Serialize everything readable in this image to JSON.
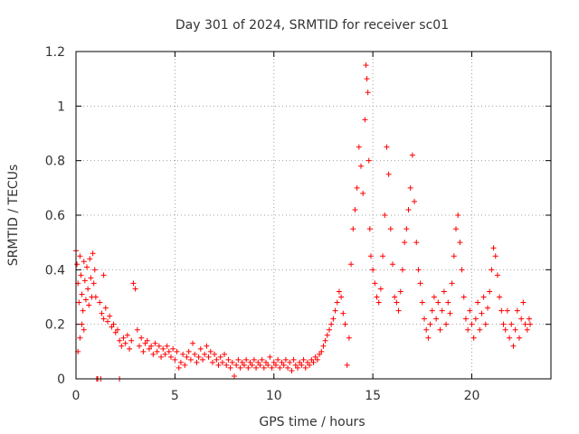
{
  "chart_data": {
    "type": "scatter",
    "title": "Day 301 of 2024, SRMTID for receiver sc01",
    "xlabel": "GPS time / hours",
    "ylabel": "SRMTID / TECUs",
    "xlim": [
      0,
      24
    ],
    "ylim": [
      0,
      1.2
    ],
    "xticks": [
      0,
      5,
      10,
      15,
      20
    ],
    "xtick_labels": [
      "0",
      "5",
      "10",
      "15",
      "20"
    ],
    "yticks": [
      0,
      0.2,
      0.4,
      0.6,
      0.8,
      1.0,
      1.2
    ],
    "ytick_labels": [
      "0",
      "0.2",
      "0.4",
      "0.6",
      "0.8",
      "1",
      "1.2"
    ],
    "grid": true,
    "marker": "+",
    "series": [
      {
        "name": "sc01",
        "color": "#ff0000",
        "points": [
          [
            0.0,
            0.47
          ],
          [
            0.05,
            0.42
          ],
          [
            0.1,
            0.35
          ],
          [
            0.15,
            0.28
          ],
          [
            0.2,
            0.45
          ],
          [
            0.25,
            0.38
          ],
          [
            0.3,
            0.31
          ],
          [
            0.35,
            0.25
          ],
          [
            0.4,
            0.43
          ],
          [
            0.45,
            0.36
          ],
          [
            0.5,
            0.29
          ],
          [
            0.55,
            0.41
          ],
          [
            0.6,
            0.33
          ],
          [
            0.65,
            0.27
          ],
          [
            0.7,
            0.44
          ],
          [
            0.75,
            0.37
          ],
          [
            0.8,
            0.3
          ],
          [
            0.85,
            0.46
          ],
          [
            0.9,
            0.35
          ],
          [
            0.95,
            0.4
          ],
          [
            0.1,
            0.1
          ],
          [
            0.2,
            0.15
          ],
          [
            0.3,
            0.2
          ],
          [
            0.4,
            0.18
          ],
          [
            1.05,
            0.0
          ],
          [
            1.1,
            0.0
          ],
          [
            1.25,
            0.0
          ],
          [
            2.2,
            0.0
          ],
          [
            1.4,
            0.38
          ],
          [
            1.0,
            0.3
          ],
          [
            1.2,
            0.28
          ],
          [
            1.3,
            0.24
          ],
          [
            1.4,
            0.22
          ],
          [
            1.5,
            0.26
          ],
          [
            1.6,
            0.21
          ],
          [
            1.7,
            0.23
          ],
          [
            1.8,
            0.19
          ],
          [
            1.9,
            0.2
          ],
          [
            2.0,
            0.17
          ],
          [
            2.1,
            0.18
          ],
          [
            2.2,
            0.14
          ],
          [
            2.3,
            0.12
          ],
          [
            2.4,
            0.15
          ],
          [
            2.5,
            0.13
          ],
          [
            2.6,
            0.16
          ],
          [
            2.7,
            0.11
          ],
          [
            2.8,
            0.14
          ],
          [
            2.9,
            0.35
          ],
          [
            3.0,
            0.33
          ],
          [
            3.1,
            0.18
          ],
          [
            3.2,
            0.12
          ],
          [
            3.3,
            0.15
          ],
          [
            3.4,
            0.1
          ],
          [
            3.5,
            0.13
          ],
          [
            3.6,
            0.14
          ],
          [
            3.7,
            0.11
          ],
          [
            3.8,
            0.12
          ],
          [
            3.9,
            0.09
          ],
          [
            4.0,
            0.13
          ],
          [
            4.1,
            0.1
          ],
          [
            4.2,
            0.12
          ],
          [
            4.3,
            0.08
          ],
          [
            4.4,
            0.11
          ],
          [
            4.5,
            0.09
          ],
          [
            4.6,
            0.12
          ],
          [
            4.7,
            0.1
          ],
          [
            4.8,
            0.08
          ],
          [
            4.9,
            0.11
          ],
          [
            5.0,
            0.07
          ],
          [
            5.1,
            0.1
          ],
          [
            5.2,
            0.04
          ],
          [
            5.3,
            0.06
          ],
          [
            5.4,
            0.09
          ],
          [
            5.5,
            0.05
          ],
          [
            5.6,
            0.08
          ],
          [
            5.7,
            0.1
          ],
          [
            5.8,
            0.07
          ],
          [
            5.9,
            0.13
          ],
          [
            6.0,
            0.09
          ],
          [
            6.1,
            0.06
          ],
          [
            6.2,
            0.08
          ],
          [
            6.3,
            0.11
          ],
          [
            6.4,
            0.07
          ],
          [
            6.5,
            0.09
          ],
          [
            6.6,
            0.12
          ],
          [
            6.7,
            0.08
          ],
          [
            6.8,
            0.1
          ],
          [
            6.9,
            0.06
          ],
          [
            7.0,
            0.09
          ],
          [
            7.1,
            0.07
          ],
          [
            7.2,
            0.05
          ],
          [
            7.3,
            0.08
          ],
          [
            7.4,
            0.06
          ],
          [
            7.5,
            0.09
          ],
          [
            7.6,
            0.05
          ],
          [
            7.7,
            0.07
          ],
          [
            7.8,
            0.04
          ],
          [
            7.9,
            0.06
          ],
          [
            8.0,
            0.01
          ],
          [
            8.1,
            0.05
          ],
          [
            8.2,
            0.07
          ],
          [
            8.3,
            0.04
          ],
          [
            8.4,
            0.06
          ],
          [
            8.5,
            0.05
          ],
          [
            8.6,
            0.07
          ],
          [
            8.7,
            0.04
          ],
          [
            8.8,
            0.06
          ],
          [
            8.9,
            0.05
          ],
          [
            9.0,
            0.07
          ],
          [
            9.1,
            0.04
          ],
          [
            9.2,
            0.06
          ],
          [
            9.3,
            0.05
          ],
          [
            9.4,
            0.07
          ],
          [
            9.5,
            0.04
          ],
          [
            9.6,
            0.06
          ],
          [
            9.7,
            0.05
          ],
          [
            9.8,
            0.08
          ],
          [
            9.9,
            0.04
          ],
          [
            10.0,
            0.06
          ],
          [
            10.1,
            0.05
          ],
          [
            10.2,
            0.07
          ],
          [
            10.3,
            0.04
          ],
          [
            10.4,
            0.06
          ],
          [
            10.5,
            0.05
          ],
          [
            10.6,
            0.07
          ],
          [
            10.7,
            0.04
          ],
          [
            10.8,
            0.06
          ],
          [
            10.9,
            0.03
          ],
          [
            11.0,
            0.07
          ],
          [
            11.1,
            0.05
          ],
          [
            11.2,
            0.04
          ],
          [
            11.3,
            0.06
          ],
          [
            11.4,
            0.05
          ],
          [
            11.5,
            0.07
          ],
          [
            11.6,
            0.04
          ],
          [
            11.7,
            0.06
          ],
          [
            11.8,
            0.05
          ],
          [
            11.9,
            0.07
          ],
          [
            12.0,
            0.06
          ],
          [
            12.1,
            0.08
          ],
          [
            12.2,
            0.07
          ],
          [
            12.3,
            0.09
          ],
          [
            12.4,
            0.1
          ],
          [
            12.5,
            0.12
          ],
          [
            12.6,
            0.14
          ],
          [
            12.7,
            0.16
          ],
          [
            12.8,
            0.18
          ],
          [
            12.9,
            0.2
          ],
          [
            13.0,
            0.22
          ],
          [
            13.1,
            0.25
          ],
          [
            13.2,
            0.28
          ],
          [
            13.3,
            0.32
          ],
          [
            13.4,
            0.3
          ],
          [
            13.5,
            0.24
          ],
          [
            13.6,
            0.2
          ],
          [
            13.7,
            0.05
          ],
          [
            13.8,
            0.15
          ],
          [
            13.9,
            0.42
          ],
          [
            14.0,
            0.55
          ],
          [
            14.1,
            0.62
          ],
          [
            14.2,
            0.7
          ],
          [
            14.3,
            0.85
          ],
          [
            14.4,
            0.78
          ],
          [
            14.5,
            0.68
          ],
          [
            14.6,
            0.95
          ],
          [
            14.65,
            1.15
          ],
          [
            14.7,
            1.1
          ],
          [
            14.75,
            1.05
          ],
          [
            14.8,
            0.8
          ],
          [
            14.85,
            0.55
          ],
          [
            14.9,
            0.45
          ],
          [
            15.0,
            0.4
          ],
          [
            15.1,
            0.35
          ],
          [
            15.2,
            0.3
          ],
          [
            15.3,
            0.28
          ],
          [
            15.4,
            0.33
          ],
          [
            15.5,
            0.45
          ],
          [
            15.6,
            0.6
          ],
          [
            15.7,
            0.85
          ],
          [
            15.8,
            0.75
          ],
          [
            15.9,
            0.55
          ],
          [
            16.0,
            0.42
          ],
          [
            16.1,
            0.3
          ],
          [
            16.2,
            0.28
          ],
          [
            16.3,
            0.25
          ],
          [
            16.4,
            0.32
          ],
          [
            16.5,
            0.4
          ],
          [
            16.6,
            0.5
          ],
          [
            16.7,
            0.55
          ],
          [
            16.8,
            0.62
          ],
          [
            16.9,
            0.7
          ],
          [
            17.0,
            0.82
          ],
          [
            17.1,
            0.65
          ],
          [
            17.2,
            0.5
          ],
          [
            17.3,
            0.4
          ],
          [
            17.4,
            0.35
          ],
          [
            17.5,
            0.28
          ],
          [
            17.6,
            0.22
          ],
          [
            17.7,
            0.18
          ],
          [
            17.8,
            0.15
          ],
          [
            17.9,
            0.2
          ],
          [
            18.0,
            0.25
          ],
          [
            18.1,
            0.3
          ],
          [
            18.2,
            0.22
          ],
          [
            18.3,
            0.28
          ],
          [
            18.4,
            0.18
          ],
          [
            18.5,
            0.25
          ],
          [
            18.6,
            0.32
          ],
          [
            18.7,
            0.2
          ],
          [
            18.8,
            0.28
          ],
          [
            18.9,
            0.24
          ],
          [
            19.0,
            0.35
          ],
          [
            19.1,
            0.45
          ],
          [
            19.2,
            0.55
          ],
          [
            19.3,
            0.6
          ],
          [
            19.4,
            0.5
          ],
          [
            19.5,
            0.4
          ],
          [
            19.6,
            0.3
          ],
          [
            19.7,
            0.22
          ],
          [
            19.8,
            0.18
          ],
          [
            19.9,
            0.25
          ],
          [
            20.0,
            0.2
          ],
          [
            20.1,
            0.15
          ],
          [
            20.2,
            0.22
          ],
          [
            20.3,
            0.28
          ],
          [
            20.4,
            0.18
          ],
          [
            20.5,
            0.24
          ],
          [
            20.6,
            0.3
          ],
          [
            20.7,
            0.2
          ],
          [
            20.8,
            0.26
          ],
          [
            20.9,
            0.32
          ],
          [
            21.0,
            0.4
          ],
          [
            21.1,
            0.48
          ],
          [
            21.2,
            0.45
          ],
          [
            21.3,
            0.38
          ],
          [
            21.4,
            0.3
          ],
          [
            21.5,
            0.25
          ],
          [
            21.6,
            0.2
          ],
          [
            21.7,
            0.18
          ],
          [
            21.8,
            0.25
          ],
          [
            21.9,
            0.15
          ],
          [
            22.0,
            0.2
          ],
          [
            22.1,
            0.12
          ],
          [
            22.2,
            0.18
          ],
          [
            22.3,
            0.25
          ],
          [
            22.4,
            0.15
          ],
          [
            22.5,
            0.22
          ],
          [
            22.6,
            0.28
          ],
          [
            22.7,
            0.2
          ],
          [
            22.8,
            0.18
          ],
          [
            22.9,
            0.22
          ],
          [
            22.95,
            0.2
          ]
        ]
      }
    ]
  }
}
